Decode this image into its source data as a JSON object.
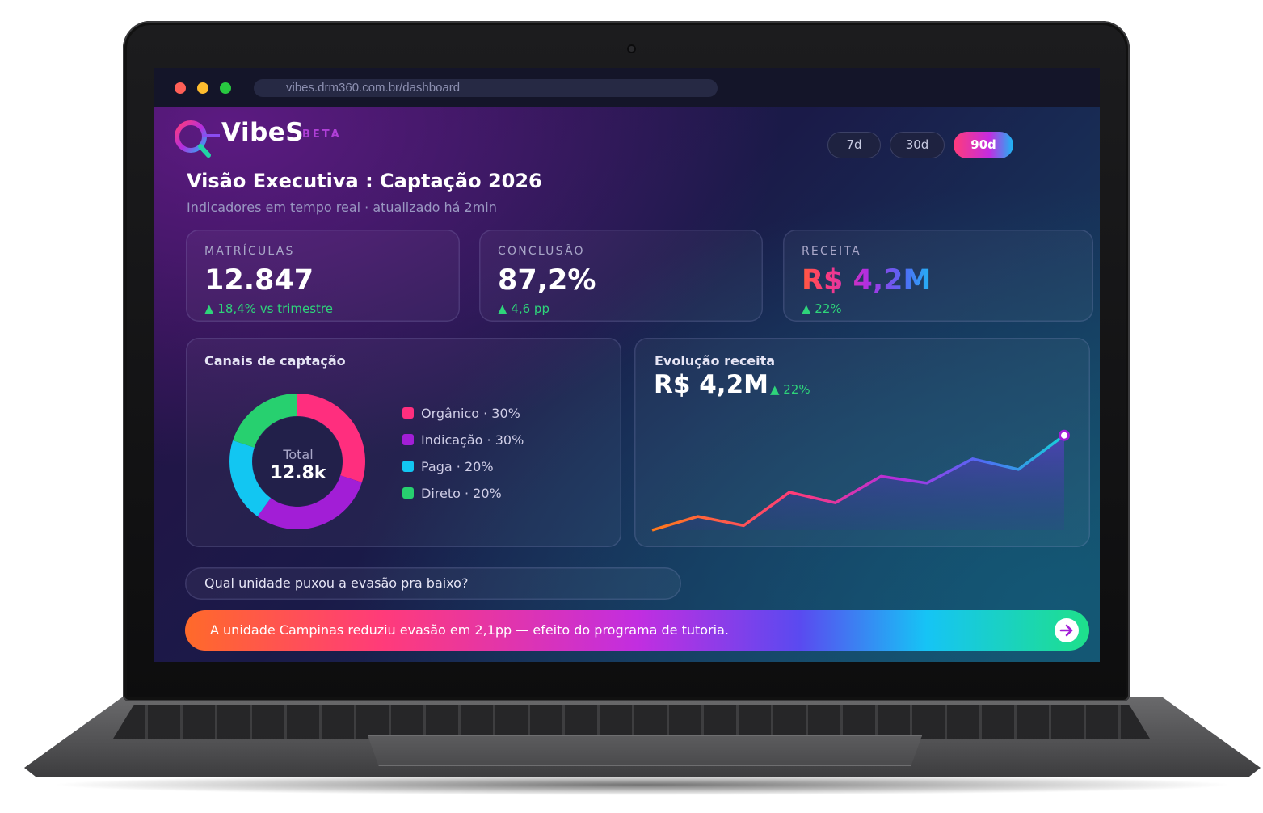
{
  "browser": {
    "url": "vibes.drm360.com.br/dashboard"
  },
  "brand": {
    "name": "VibeS",
    "tag": "BETA"
  },
  "ranges": [
    {
      "label": "7d",
      "active": false
    },
    {
      "label": "30d",
      "active": false
    },
    {
      "label": "90d",
      "active": true
    }
  ],
  "header": {
    "title": "Visão Executiva : Captação 2026",
    "subtitle": "Indicadores em tempo real · atualizado há 2min"
  },
  "kpis": [
    {
      "label": "MATRÍCULAS",
      "value": "12.847",
      "delta": "▲ 18,4% vs trimestre"
    },
    {
      "label": "CONCLUSÃO",
      "value": "87,2%",
      "delta": "▲ 4,6 pp"
    },
    {
      "label": "RECEITA",
      "value": "R$ 4,2M",
      "delta": "▲ 22%"
    }
  ],
  "channels": {
    "title": "Canais de captação",
    "total_label": "Total",
    "total_value": "12.8k",
    "items": [
      {
        "label": "Orgânico · 30%",
        "color": "#ff2e7e"
      },
      {
        "label": "Indicação · 30%",
        "color": "#a21ed6"
      },
      {
        "label": "Paga · 20%",
        "color": "#12c6f2"
      },
      {
        "label": "Direto · 20%",
        "color": "#27d06f"
      }
    ]
  },
  "revenue": {
    "title": "Evolução receita",
    "value": "R$ 4,2M",
    "delta": "▲ 22%"
  },
  "assistant": {
    "question": "Qual unidade puxou a evasão pra baixo?",
    "answer": "A unidade Campinas reduziu evasão em 2,1pp — efeito do programa de tutoria."
  },
  "colors": {
    "positive": "#2ed47a",
    "accent_pink": "#ff3b7a",
    "accent_purple": "#b22ee0",
    "accent_cyan": "#19b8f5"
  },
  "chart_data": [
    {
      "type": "pie",
      "title": "Canais de captação",
      "categories": [
        "Orgânico",
        "Indicação",
        "Paga",
        "Direto"
      ],
      "values": [
        30,
        30,
        20,
        20
      ],
      "colors": [
        "#ff2e7e",
        "#a21ed6",
        "#12c6f2",
        "#27d06f"
      ],
      "donut": true,
      "legend": "right"
    },
    {
      "type": "area",
      "title": "Evolução receita",
      "x": [
        1,
        2,
        3,
        4,
        5,
        6,
        7,
        8,
        9,
        10
      ],
      "values": [
        0.0,
        0.36,
        0.12,
        1.0,
        0.72,
        1.42,
        1.24,
        1.88,
        1.6,
        2.5
      ],
      "ylim": [
        0,
        2.6
      ],
      "grid": false,
      "legend": "none"
    }
  ]
}
